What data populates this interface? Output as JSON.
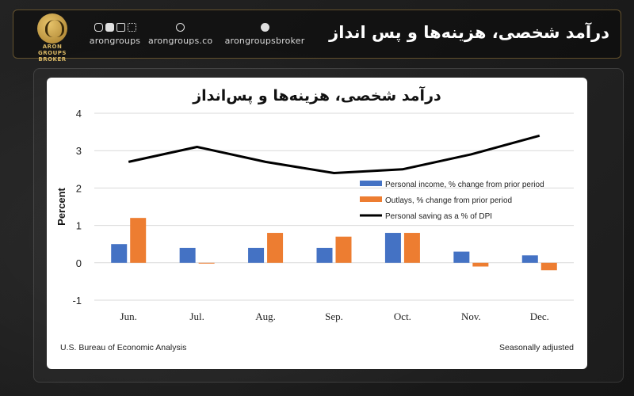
{
  "header": {
    "title": "درآمد شخصی، هزینه‌ها و پس انداز",
    "logo_lines": [
      "ARON",
      "GROUPS",
      "BROKER"
    ],
    "social": [
      {
        "icons": [
          "instagram-icon",
          "youtube-icon",
          "linkedin-icon",
          "app-icon"
        ],
        "text": "arongroups"
      },
      {
        "icons": [
          "globe-icon"
        ],
        "text": "arongroups.co"
      },
      {
        "icons": [
          "telegram-icon"
        ],
        "text": "arongroupsbroker"
      }
    ]
  },
  "card": {
    "source": "U.S. Bureau of Economic Analysis",
    "note": "Seasonally adjusted"
  },
  "chart_data": {
    "type": "bar",
    "title": "درآمد شخصی، هزینه‌ها و پس‌انداز",
    "ylabel": "Percent",
    "ylim": [
      -1,
      4
    ],
    "yticks": [
      -1,
      0,
      1,
      2,
      3,
      4
    ],
    "categories": [
      "Jun.",
      "Jul.",
      "Aug.",
      "Sep.",
      "Oct.",
      "Nov.",
      "Dec."
    ],
    "series": [
      {
        "name": "Personal income, % change from prior period",
        "kind": "bar",
        "color": "#4472c4",
        "values": [
          0.5,
          0.4,
          0.4,
          0.4,
          0.8,
          0.3,
          0.2
        ]
      },
      {
        "name": "Outlays, % change from prior period",
        "kind": "bar",
        "color": "#ed7d31",
        "values": [
          1.2,
          0.0,
          0.8,
          0.7,
          0.8,
          -0.1,
          -0.2
        ]
      },
      {
        "name": "Personal saving as a % of DPI",
        "kind": "line",
        "color": "#000000",
        "values": [
          2.7,
          3.1,
          2.7,
          2.4,
          2.5,
          2.9,
          3.4
        ]
      }
    ],
    "grid": true,
    "legend": "center-right"
  }
}
